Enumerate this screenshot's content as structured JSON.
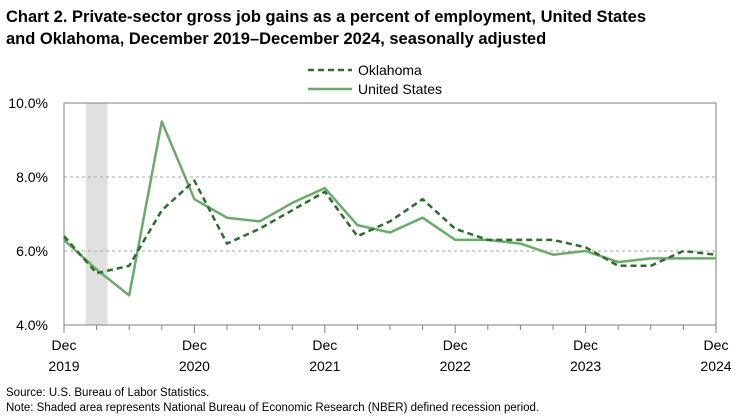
{
  "header": {
    "title_line1": "Chart 2. Private-sector gross job gains as a percent of employment, United States",
    "title_line2": "and Oklahoma, December 2019–December 2024, seasonally adjusted"
  },
  "footer": {
    "source": "Source: U.S. Bureau of Labor Statistics.",
    "note": "Note: Shaded area represents National Bureau of Economic Research (NBER) defined recession period."
  },
  "chart_data": {
    "type": "line",
    "title": "Chart 2. Private-sector gross job gains as a percent of employment, United States and Oklahoma, December 2019–December 2024, seasonally adjusted",
    "x": [
      "2019-12",
      "2020-03",
      "2020-06",
      "2020-09",
      "2020-12",
      "2021-03",
      "2021-06",
      "2021-09",
      "2021-12",
      "2022-03",
      "2022-06",
      "2022-09",
      "2022-12",
      "2023-03",
      "2023-06",
      "2023-09",
      "2023-12",
      "2024-03",
      "2024-06",
      "2024-09",
      "2024-12"
    ],
    "x_tick_labels": [
      {
        "x": "2019-12",
        "line1": "Dec",
        "line2": "2019"
      },
      {
        "x": "2020-12",
        "line1": "Dec",
        "line2": "2020"
      },
      {
        "x": "2021-12",
        "line1": "Dec",
        "line2": "2021"
      },
      {
        "x": "2022-12",
        "line1": "Dec",
        "line2": "2022"
      },
      {
        "x": "2023-12",
        "line1": "Dec",
        "line2": "2023"
      },
      {
        "x": "2024-12",
        "line1": "Dec",
        "line2": "2024"
      }
    ],
    "series": [
      {
        "name": "Oklahoma",
        "style": "dashed",
        "color": "#2e6b2e",
        "values": [
          6.4,
          5.4,
          5.6,
          7.1,
          7.9,
          6.2,
          6.6,
          7.1,
          7.6,
          6.4,
          6.8,
          7.4,
          6.6,
          6.3,
          6.3,
          6.3,
          6.1,
          5.6,
          5.6,
          6.0,
          5.9
        ]
      },
      {
        "name": "United States",
        "style": "solid",
        "color": "#6aaa6a",
        "values": [
          6.3,
          5.5,
          4.8,
          9.5,
          7.4,
          6.9,
          6.8,
          7.3,
          7.7,
          6.7,
          6.5,
          6.9,
          6.3,
          6.3,
          6.2,
          5.9,
          6.0,
          5.7,
          5.8,
          5.8,
          5.8
        ]
      }
    ],
    "y_tick_labels": [
      "4.0%",
      "6.0%",
      "8.0%",
      "10.0%"
    ],
    "y_ticks": [
      4,
      6,
      8,
      10
    ],
    "ylim": [
      4,
      10
    ],
    "recession_shading": {
      "start": "2020-02",
      "end": "2020-04"
    },
    "grid": "horizontal dashed",
    "legend_placement": "top-center"
  }
}
